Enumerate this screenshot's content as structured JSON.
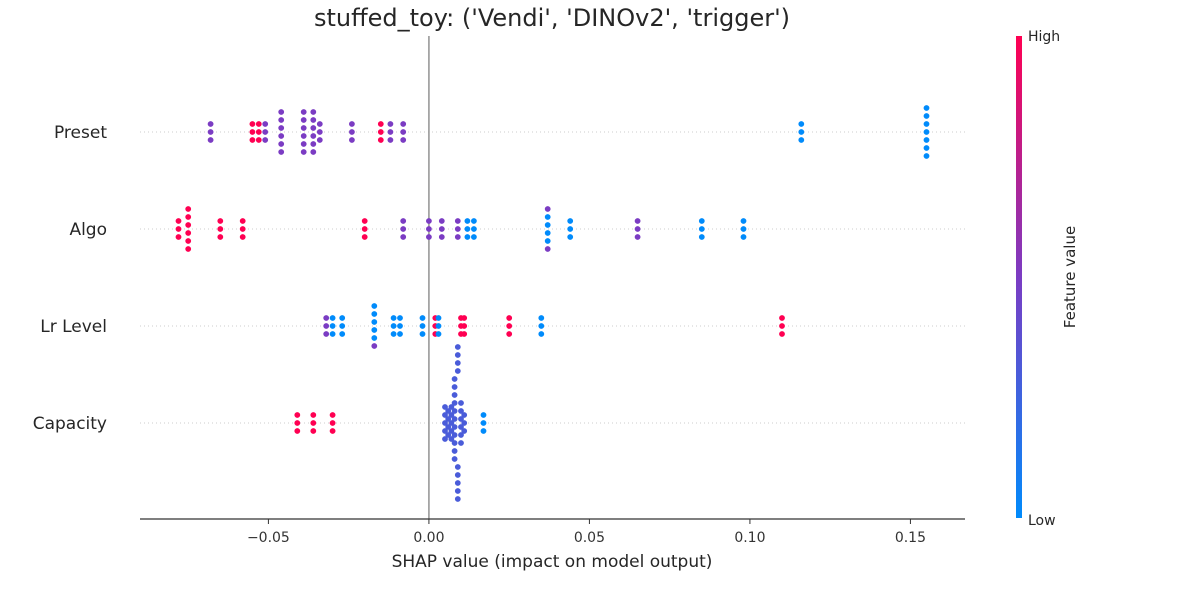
{
  "chart_data": {
    "type": "scatter",
    "subtype": "shap-beeswarm",
    "title": "stuffed_toy: ('Vendi', 'DINOv2', 'trigger')",
    "xlabel": "SHAP value (impact on model output)",
    "xlim": [
      -0.09,
      0.167
    ],
    "xticks": [
      -0.05,
      0.0,
      0.05,
      0.1,
      0.15
    ],
    "xtick_labels": [
      "−0.05",
      "0.00",
      "0.05",
      "0.10",
      "0.15"
    ],
    "zero_line": true,
    "colorbar": {
      "label": "Feature value",
      "high_label": "High",
      "low_label": "Low",
      "low_color": "#008bfb",
      "mid_color": "#7b3cc3",
      "high_color": "#ff0052"
    },
    "features": [
      {
        "name": "Preset",
        "points": [
          {
            "x": -0.068,
            "v": 0.5
          },
          {
            "x": -0.068,
            "v": 0.5
          },
          {
            "x": -0.068,
            "v": 0.5
          },
          {
            "x": -0.055,
            "v": 1.0
          },
          {
            "x": -0.055,
            "v": 1.0
          },
          {
            "x": -0.055,
            "v": 1.0
          },
          {
            "x": -0.053,
            "v": 1.0
          },
          {
            "x": -0.053,
            "v": 1.0
          },
          {
            "x": -0.053,
            "v": 1.0
          },
          {
            "x": -0.051,
            "v": 0.5
          },
          {
            "x": -0.051,
            "v": 0.5
          },
          {
            "x": -0.051,
            "v": 0.5
          },
          {
            "x": -0.046,
            "v": 0.5
          },
          {
            "x": -0.046,
            "v": 0.5
          },
          {
            "x": -0.046,
            "v": 0.5
          },
          {
            "x": -0.046,
            "v": 0.5
          },
          {
            "x": -0.046,
            "v": 0.5
          },
          {
            "x": -0.046,
            "v": 0.5
          },
          {
            "x": -0.039,
            "v": 0.5
          },
          {
            "x": -0.039,
            "v": 0.5
          },
          {
            "x": -0.039,
            "v": 0.5
          },
          {
            "x": -0.039,
            "v": 0.5
          },
          {
            "x": -0.039,
            "v": 0.5
          },
          {
            "x": -0.039,
            "v": 0.5
          },
          {
            "x": -0.036,
            "v": 0.5
          },
          {
            "x": -0.036,
            "v": 0.5
          },
          {
            "x": -0.036,
            "v": 0.5
          },
          {
            "x": -0.036,
            "v": 0.5
          },
          {
            "x": -0.036,
            "v": 0.5
          },
          {
            "x": -0.036,
            "v": 0.5
          },
          {
            "x": -0.034,
            "v": 0.5
          },
          {
            "x": -0.034,
            "v": 0.5
          },
          {
            "x": -0.034,
            "v": 0.5
          },
          {
            "x": -0.024,
            "v": 0.5
          },
          {
            "x": -0.024,
            "v": 0.5
          },
          {
            "x": -0.024,
            "v": 0.5
          },
          {
            "x": -0.015,
            "v": 1.0
          },
          {
            "x": -0.015,
            "v": 1.0
          },
          {
            "x": -0.015,
            "v": 1.0
          },
          {
            "x": -0.012,
            "v": 0.5
          },
          {
            "x": -0.012,
            "v": 0.5
          },
          {
            "x": -0.012,
            "v": 0.5
          },
          {
            "x": -0.008,
            "v": 0.5
          },
          {
            "x": -0.008,
            "v": 0.5
          },
          {
            "x": -0.008,
            "v": 0.5
          },
          {
            "x": 0.116,
            "v": 0.0
          },
          {
            "x": 0.116,
            "v": 0.0
          },
          {
            "x": 0.116,
            "v": 0.0
          },
          {
            "x": 0.155,
            "v": 0.0
          },
          {
            "x": 0.155,
            "v": 0.0
          },
          {
            "x": 0.155,
            "v": 0.0
          },
          {
            "x": 0.155,
            "v": 0.0
          },
          {
            "x": 0.155,
            "v": 0.0
          },
          {
            "x": 0.155,
            "v": 0.0
          },
          {
            "x": 0.155,
            "v": 0.0
          }
        ]
      },
      {
        "name": "Algo",
        "points": [
          {
            "x": -0.078,
            "v": 1.0
          },
          {
            "x": -0.078,
            "v": 1.0
          },
          {
            "x": -0.078,
            "v": 1.0
          },
          {
            "x": -0.075,
            "v": 1.0
          },
          {
            "x": -0.075,
            "v": 1.0
          },
          {
            "x": -0.075,
            "v": 1.0
          },
          {
            "x": -0.075,
            "v": 1.0
          },
          {
            "x": -0.075,
            "v": 1.0
          },
          {
            "x": -0.075,
            "v": 1.0
          },
          {
            "x": -0.065,
            "v": 1.0
          },
          {
            "x": -0.065,
            "v": 1.0
          },
          {
            "x": -0.065,
            "v": 1.0
          },
          {
            "x": -0.058,
            "v": 1.0
          },
          {
            "x": -0.058,
            "v": 1.0
          },
          {
            "x": -0.058,
            "v": 1.0
          },
          {
            "x": -0.02,
            "v": 1.0
          },
          {
            "x": -0.02,
            "v": 1.0
          },
          {
            "x": -0.02,
            "v": 1.0
          },
          {
            "x": -0.008,
            "v": 0.5
          },
          {
            "x": -0.008,
            "v": 0.5
          },
          {
            "x": -0.008,
            "v": 0.5
          },
          {
            "x": 0.0,
            "v": 0.5
          },
          {
            "x": 0.0,
            "v": 0.5
          },
          {
            "x": 0.0,
            "v": 0.5
          },
          {
            "x": 0.004,
            "v": 0.5
          },
          {
            "x": 0.004,
            "v": 0.5
          },
          {
            "x": 0.004,
            "v": 0.5
          },
          {
            "x": 0.009,
            "v": 0.5
          },
          {
            "x": 0.009,
            "v": 0.5
          },
          {
            "x": 0.009,
            "v": 0.5
          },
          {
            "x": 0.012,
            "v": 0.0
          },
          {
            "x": 0.012,
            "v": 0.0
          },
          {
            "x": 0.012,
            "v": 0.0
          },
          {
            "x": 0.014,
            "v": 0.0
          },
          {
            "x": 0.014,
            "v": 0.0
          },
          {
            "x": 0.014,
            "v": 0.0
          },
          {
            "x": 0.037,
            "v": 0.0
          },
          {
            "x": 0.037,
            "v": 0.0
          },
          {
            "x": 0.037,
            "v": 0.0
          },
          {
            "x": 0.037,
            "v": 0.0
          },
          {
            "x": 0.037,
            "v": 0.5
          },
          {
            "x": 0.037,
            "v": 0.5
          },
          {
            "x": 0.044,
            "v": 0.0
          },
          {
            "x": 0.044,
            "v": 0.0
          },
          {
            "x": 0.044,
            "v": 0.0
          },
          {
            "x": 0.065,
            "v": 0.5
          },
          {
            "x": 0.065,
            "v": 0.5
          },
          {
            "x": 0.065,
            "v": 0.5
          },
          {
            "x": 0.085,
            "v": 0.0
          },
          {
            "x": 0.085,
            "v": 0.0
          },
          {
            "x": 0.085,
            "v": 0.0
          },
          {
            "x": 0.098,
            "v": 0.0
          },
          {
            "x": 0.098,
            "v": 0.0
          },
          {
            "x": 0.098,
            "v": 0.0
          }
        ]
      },
      {
        "name": "Lr Level",
        "points": [
          {
            "x": -0.032,
            "v": 0.5
          },
          {
            "x": -0.032,
            "v": 0.5
          },
          {
            "x": -0.032,
            "v": 0.5
          },
          {
            "x": -0.03,
            "v": 0.0
          },
          {
            "x": -0.03,
            "v": 0.0
          },
          {
            "x": -0.03,
            "v": 0.0
          },
          {
            "x": -0.027,
            "v": 0.0
          },
          {
            "x": -0.027,
            "v": 0.0
          },
          {
            "x": -0.027,
            "v": 0.0
          },
          {
            "x": -0.017,
            "v": 0.0
          },
          {
            "x": -0.017,
            "v": 0.0
          },
          {
            "x": -0.017,
            "v": 0.0
          },
          {
            "x": -0.017,
            "v": 0.0
          },
          {
            "x": -0.017,
            "v": 0.0
          },
          {
            "x": -0.017,
            "v": 0.5
          },
          {
            "x": -0.011,
            "v": 0.0
          },
          {
            "x": -0.011,
            "v": 0.0
          },
          {
            "x": -0.011,
            "v": 0.0
          },
          {
            "x": -0.009,
            "v": 0.0
          },
          {
            "x": -0.009,
            "v": 0.0
          },
          {
            "x": -0.009,
            "v": 0.0
          },
          {
            "x": -0.002,
            "v": 0.0
          },
          {
            "x": -0.002,
            "v": 0.0
          },
          {
            "x": -0.002,
            "v": 0.0
          },
          {
            "x": 0.002,
            "v": 1.0
          },
          {
            "x": 0.002,
            "v": 1.0
          },
          {
            "x": 0.002,
            "v": 1.0
          },
          {
            "x": 0.003,
            "v": 0.0
          },
          {
            "x": 0.003,
            "v": 0.0
          },
          {
            "x": 0.003,
            "v": 0.0
          },
          {
            "x": 0.01,
            "v": 1.0
          },
          {
            "x": 0.01,
            "v": 1.0
          },
          {
            "x": 0.01,
            "v": 1.0
          },
          {
            "x": 0.011,
            "v": 1.0
          },
          {
            "x": 0.011,
            "v": 1.0
          },
          {
            "x": 0.011,
            "v": 1.0
          },
          {
            "x": 0.025,
            "v": 1.0
          },
          {
            "x": 0.025,
            "v": 1.0
          },
          {
            "x": 0.025,
            "v": 1.0
          },
          {
            "x": 0.035,
            "v": 0.0
          },
          {
            "x": 0.035,
            "v": 0.0
          },
          {
            "x": 0.035,
            "v": 0.0
          },
          {
            "x": 0.11,
            "v": 1.0
          },
          {
            "x": 0.11,
            "v": 1.0
          },
          {
            "x": 0.11,
            "v": 1.0
          }
        ]
      },
      {
        "name": "Capacity",
        "points": [
          {
            "x": -0.041,
            "v": 1.0
          },
          {
            "x": -0.041,
            "v": 1.0
          },
          {
            "x": -0.041,
            "v": 1.0
          },
          {
            "x": -0.036,
            "v": 1.0
          },
          {
            "x": -0.036,
            "v": 1.0
          },
          {
            "x": -0.036,
            "v": 1.0
          },
          {
            "x": -0.03,
            "v": 1.0
          },
          {
            "x": -0.03,
            "v": 1.0
          },
          {
            "x": -0.03,
            "v": 1.0
          },
          {
            "x": 0.005,
            "v": 0.3
          },
          {
            "x": 0.005,
            "v": 0.3
          },
          {
            "x": 0.005,
            "v": 0.3
          },
          {
            "x": 0.005,
            "v": 0.3
          },
          {
            "x": 0.005,
            "v": 0.3
          },
          {
            "x": 0.006,
            "v": 0.3
          },
          {
            "x": 0.006,
            "v": 0.3
          },
          {
            "x": 0.006,
            "v": 0.3
          },
          {
            "x": 0.006,
            "v": 0.3
          },
          {
            "x": 0.007,
            "v": 0.3
          },
          {
            "x": 0.007,
            "v": 0.3
          },
          {
            "x": 0.007,
            "v": 0.3
          },
          {
            "x": 0.007,
            "v": 0.3
          },
          {
            "x": 0.007,
            "v": 0.3
          },
          {
            "x": 0.008,
            "v": 0.3
          },
          {
            "x": 0.008,
            "v": 0.3
          },
          {
            "x": 0.008,
            "v": 0.3
          },
          {
            "x": 0.008,
            "v": 0.3
          },
          {
            "x": 0.008,
            "v": 0.3
          },
          {
            "x": 0.008,
            "v": 0.3
          },
          {
            "x": 0.008,
            "v": 0.3
          },
          {
            "x": 0.008,
            "v": 0.3
          },
          {
            "x": 0.008,
            "v": 0.3
          },
          {
            "x": 0.008,
            "v": 0.3
          },
          {
            "x": 0.008,
            "v": 0.3
          },
          {
            "x": 0.009,
            "v": 0.3
          },
          {
            "x": 0.009,
            "v": 0.3
          },
          {
            "x": 0.009,
            "v": 0.3
          },
          {
            "x": 0.009,
            "v": 0.3
          },
          {
            "x": 0.009,
            "v": 0.3
          },
          {
            "x": 0.009,
            "v": 0.3
          },
          {
            "x": 0.009,
            "v": 0.3
          },
          {
            "x": 0.009,
            "v": 0.3
          },
          {
            "x": 0.009,
            "v": 0.3
          },
          {
            "x": 0.01,
            "v": 0.3
          },
          {
            "x": 0.01,
            "v": 0.3
          },
          {
            "x": 0.01,
            "v": 0.3
          },
          {
            "x": 0.01,
            "v": 0.3
          },
          {
            "x": 0.01,
            "v": 0.3
          },
          {
            "x": 0.01,
            "v": 0.3
          },
          {
            "x": 0.011,
            "v": 0.3
          },
          {
            "x": 0.011,
            "v": 0.3
          },
          {
            "x": 0.011,
            "v": 0.3
          },
          {
            "x": 0.017,
            "v": 0.0
          },
          {
            "x": 0.017,
            "v": 0.0
          },
          {
            "x": 0.017,
            "v": 0.0
          }
        ]
      }
    ]
  }
}
